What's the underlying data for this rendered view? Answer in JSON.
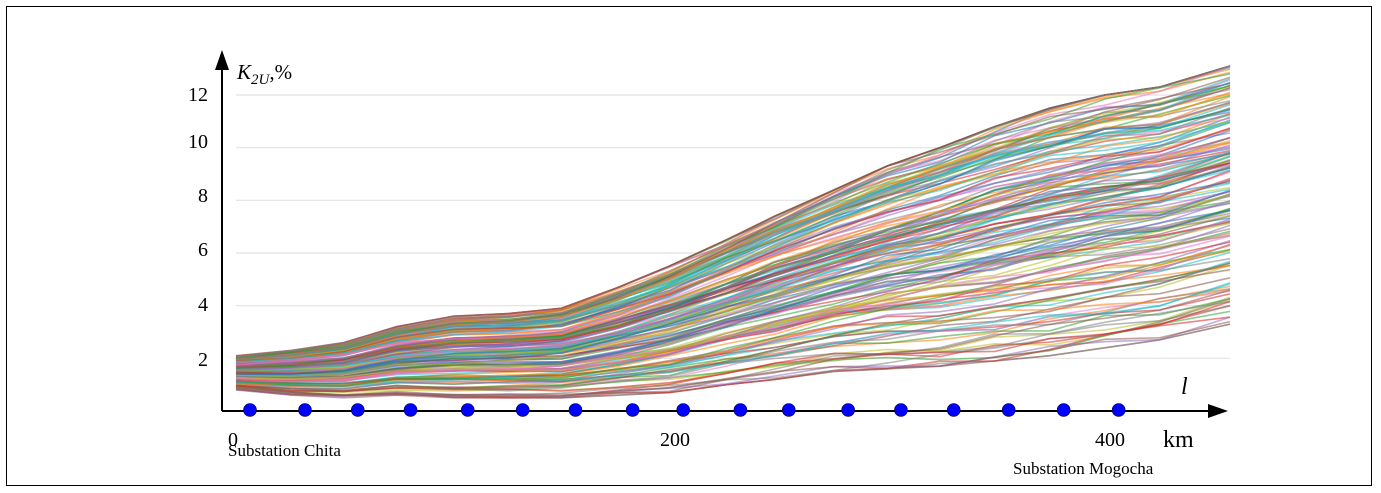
{
  "chart_data": {
    "type": "line",
    "ylabel_main": "K",
    "ylabel_sub": "2U",
    "ylabel_unit": ",%",
    "xlabel": "l",
    "xunit": "km",
    "xlim": [
      0,
      452
    ],
    "ylim": [
      0,
      12.6
    ],
    "x_ticks": [
      0,
      200,
      400
    ],
    "x_tick_labels": [
      "0",
      "200",
      "400"
    ],
    "y_ticks": [
      2,
      4,
      6,
      8,
      10,
      12
    ],
    "y_tick_labels": [
      "2",
      "4",
      "6",
      "8",
      "10",
      "12"
    ],
    "grid": true,
    "annotations": {
      "start": "Substation Chita",
      "end": "Substation Mogocha"
    },
    "substation_points_km": [
      0,
      25,
      49,
      73,
      99,
      124,
      148,
      174,
      197,
      223,
      245,
      272,
      296,
      320,
      345,
      370,
      395
    ],
    "num_series": 180,
    "x": [
      0,
      25,
      49,
      73,
      99,
      124,
      148,
      174,
      197,
      223,
      245,
      272,
      296,
      320,
      345,
      370,
      395,
      420,
      452
    ],
    "envelope_upper": [
      2.1,
      2.3,
      2.6,
      3.2,
      3.6,
      3.7,
      3.9,
      4.7,
      5.5,
      6.5,
      7.4,
      8.4,
      9.3,
      10.0,
      10.8,
      11.5,
      12.0,
      12.3,
      13.1
    ],
    "envelope_lower": [
      0.8,
      0.6,
      0.5,
      0.6,
      0.5,
      0.5,
      0.5,
      0.6,
      0.7,
      1.0,
      1.2,
      1.5,
      1.6,
      1.7,
      1.9,
      2.1,
      2.4,
      2.7,
      3.3
    ],
    "colors": [
      "#1f77b4",
      "#ff7f0e",
      "#2ca02c",
      "#d62728",
      "#9467bd",
      "#8c564b",
      "#e377c2",
      "#7f7f7f",
      "#bcbd22",
      "#17becf"
    ]
  }
}
